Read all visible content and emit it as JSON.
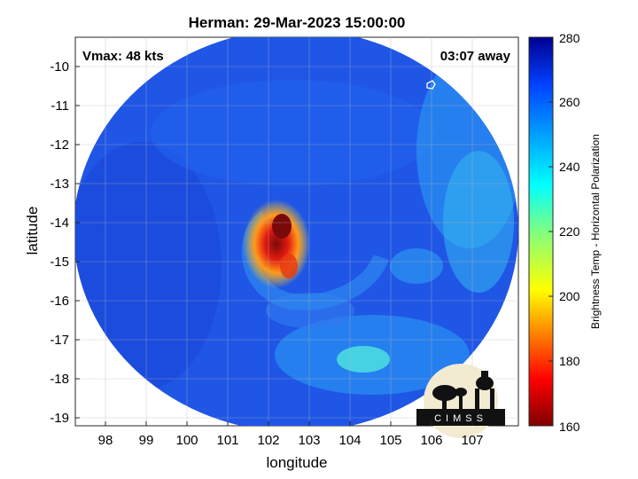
{
  "figure": {
    "title": "Herman: 29-Mar-2023 15:00:00",
    "vmax_text": "Vmax: 48 kts",
    "away_text": "03:07 away",
    "xlabel": "longitude",
    "ylabel": "latitude",
    "logo_text": "CIMSS"
  },
  "axes": {
    "x_ticks": [
      "98",
      "99",
      "100",
      "101",
      "102",
      "103",
      "104",
      "105",
      "106",
      "107"
    ],
    "y_ticks": [
      "-10",
      "-11",
      "-12",
      "-13",
      "-14",
      "-15",
      "-16",
      "-17",
      "-18",
      "-19"
    ],
    "xlim": [
      97.5,
      107.7
    ],
    "ylim": [
      -19.2,
      -9.4
    ],
    "grid": true
  },
  "colorbar": {
    "label": "Brightness Temp - Horizontal Polarization",
    "ticks": [
      "280",
      "260",
      "240",
      "220",
      "200",
      "180",
      "160"
    ],
    "range": [
      160,
      280
    ],
    "colormap": "jet",
    "placement": "right"
  },
  "colors": {
    "background_field": "#1f56e6",
    "cold_core": "#7a0a0a",
    "warm_band": "#ff8a1a",
    "cyan_band": "#34d0f0"
  }
}
